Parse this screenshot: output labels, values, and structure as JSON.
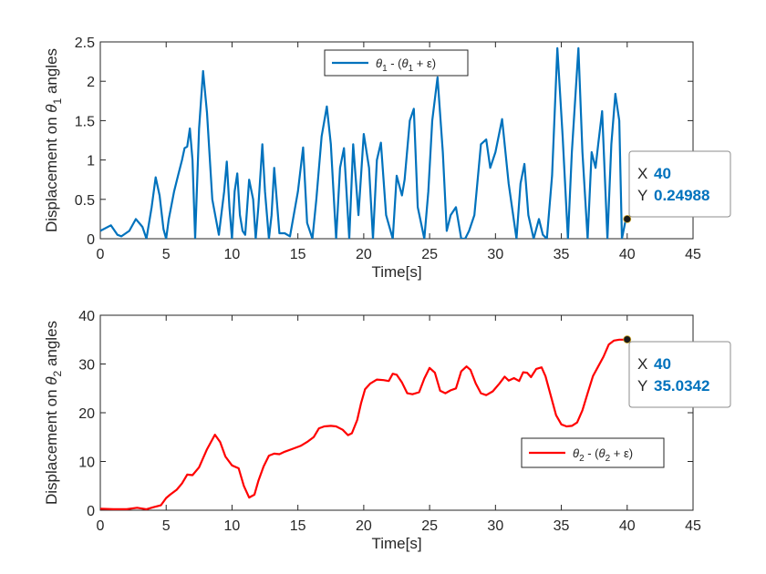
{
  "chart_data": [
    {
      "type": "line",
      "xlabel": "Time[s]",
      "ylabel": {
        "prefix": "Displacement on ",
        "symbol": "θ",
        "sub": "1",
        "suffix": " angles"
      },
      "xlim": [
        0,
        45
      ],
      "ylim": [
        0,
        2.5
      ],
      "xticks": [
        0,
        5,
        10,
        15,
        20,
        25,
        30,
        35,
        40,
        45
      ],
      "yticks": [
        0,
        0.5,
        1,
        1.5,
        2,
        2.5
      ],
      "xtick_labels": [
        "0",
        "5",
        "10",
        "15",
        "20",
        "25",
        "30",
        "35",
        "40",
        "45"
      ],
      "ytick_labels": [
        "0",
        "0.5",
        "1",
        "1.5",
        "2",
        "2.5"
      ],
      "grid": false,
      "legend": {
        "position": "top-center",
        "parts": [
          "θ",
          "1",
          " - (",
          "θ",
          "1",
          " + ε)"
        ]
      },
      "series": [
        {
          "color": "#0072BD",
          "x": [
            0,
            0.8,
            1.3,
            1.6,
            2.2,
            2.7,
            3.2,
            3.5,
            3.9,
            4.2,
            4.5,
            4.8,
            5.0,
            5.2,
            5.6,
            5.9,
            6.2,
            6.4,
            6.6,
            6.8,
            7.0,
            7.2,
            7.5,
            7.8,
            8.1,
            8.5,
            9.0,
            9.4,
            9.6,
            9.8,
            10.0,
            10.2,
            10.4,
            10.6,
            10.8,
            11.0,
            11.3,
            11.6,
            11.8,
            12.0,
            12.3,
            12.5,
            12.8,
            13.0,
            13.2,
            13.6,
            14.0,
            14.4,
            15.0,
            15.4,
            15.7,
            16.1,
            16.4,
            16.8,
            17.2,
            17.5,
            17.9,
            18.2,
            18.5,
            18.9,
            19.2,
            19.6,
            20.0,
            20.4,
            20.7,
            21.0,
            21.3,
            21.7,
            22.2,
            22.5,
            22.9,
            23.1,
            23.5,
            23.8,
            24.1,
            24.6,
            24.9,
            25.2,
            25.6,
            26.0,
            26.3,
            26.6,
            27.0,
            27.4,
            27.7,
            28.0,
            28.4,
            28.9,
            29.3,
            29.6,
            30.0,
            30.5,
            31.0,
            31.3,
            31.6,
            31.9,
            32.2,
            32.5,
            32.9,
            33.3,
            33.6,
            33.9,
            34.3,
            34.7,
            35.1,
            35.5,
            35.8,
            36.3,
            36.6,
            37.0,
            37.3,
            37.6,
            37.8,
            38.1,
            38.5,
            38.8,
            39.1,
            39.4,
            39.6,
            39.9,
            40.0
          ],
          "values": [
            0.1,
            0.17,
            0.05,
            0.03,
            0.1,
            0.25,
            0.15,
            0.0,
            0.4,
            0.78,
            0.55,
            0.12,
            0.0,
            0.25,
            0.6,
            0.8,
            1.0,
            1.15,
            1.17,
            1.4,
            1.0,
            0.0,
            1.4,
            2.13,
            1.6,
            0.5,
            0.05,
            0.6,
            0.98,
            0.4,
            0.0,
            0.6,
            0.83,
            0.3,
            0.1,
            0.05,
            0.75,
            0.5,
            0.0,
            0.4,
            1.2,
            0.6,
            0.0,
            0.3,
            0.9,
            0.07,
            0.07,
            0.03,
            0.6,
            1.16,
            0.2,
            0.0,
            0.5,
            1.3,
            1.68,
            1.2,
            0.0,
            0.9,
            1.15,
            0.0,
            1.2,
            0.3,
            1.33,
            0.9,
            0.0,
            1.0,
            1.22,
            0.3,
            0.0,
            0.8,
            0.55,
            0.75,
            1.5,
            1.65,
            0.4,
            0.0,
            0.6,
            1.5,
            2.05,
            1.1,
            0.1,
            0.3,
            0.4,
            0.0,
            0.0,
            0.1,
            0.3,
            1.2,
            1.26,
            0.9,
            1.1,
            1.52,
            0.7,
            0.35,
            0.0,
            0.7,
            0.95,
            0.3,
            0.0,
            0.25,
            0.05,
            0.0,
            0.8,
            2.42,
            1.3,
            0.0,
            1.1,
            2.42,
            1.1,
            0.0,
            1.1,
            0.9,
            1.2,
            1.62,
            0.0,
            1.2,
            1.84,
            1.5,
            0.0,
            0.25,
            0.25
          ]
        }
      ],
      "datatip": {
        "point": [
          40,
          0.24988
        ],
        "x_label": "X",
        "x_value": "40",
        "y_label": "Y",
        "y_value": "0.24988"
      }
    },
    {
      "type": "line",
      "xlabel": "Time[s]",
      "ylabel": {
        "prefix": "Displacement on ",
        "symbol": "θ",
        "sub": "2",
        "suffix": " angles"
      },
      "xlim": [
        0,
        45
      ],
      "ylim": [
        0,
        40
      ],
      "xticks": [
        0,
        5,
        10,
        15,
        20,
        25,
        30,
        35,
        40,
        45
      ],
      "yticks": [
        0,
        10,
        20,
        30,
        40
      ],
      "xtick_labels": [
        "0",
        "5",
        "10",
        "15",
        "20",
        "25",
        "30",
        "35",
        "40",
        "45"
      ],
      "ytick_labels": [
        "0",
        "10",
        "20",
        "30",
        "40"
      ],
      "grid": false,
      "legend": {
        "position": "bottom-right",
        "parts": [
          "θ",
          "2",
          " - (",
          "θ",
          "2",
          " + ε)"
        ]
      },
      "series": [
        {
          "color": "#FF0000",
          "x": [
            0,
            1.0,
            2.0,
            2.8,
            3.5,
            4.0,
            4.6,
            5.0,
            5.3,
            5.8,
            6.2,
            6.6,
            7.0,
            7.5,
            8.1,
            8.7,
            9.1,
            9.5,
            10.0,
            10.5,
            10.9,
            11.3,
            11.7,
            12.0,
            12.4,
            12.8,
            13.2,
            13.6,
            14.0,
            14.6,
            15.2,
            15.7,
            16.2,
            16.6,
            17.0,
            17.5,
            17.9,
            18.4,
            18.8,
            19.1,
            19.5,
            19.8,
            20.1,
            20.5,
            21.0,
            21.5,
            21.9,
            22.2,
            22.5,
            22.9,
            23.3,
            23.7,
            24.2,
            24.6,
            25.0,
            25.4,
            25.8,
            26.2,
            26.6,
            27.0,
            27.4,
            27.8,
            28.1,
            28.5,
            28.9,
            29.3,
            29.8,
            30.3,
            30.7,
            31.0,
            31.4,
            31.8,
            32.1,
            32.4,
            32.7,
            33.1,
            33.5,
            33.8,
            34.2,
            34.6,
            35.0,
            35.4,
            35.8,
            36.2,
            36.6,
            37.0,
            37.4,
            37.8,
            38.2,
            38.6,
            39.0,
            39.4,
            39.7,
            40.0
          ],
          "values": [
            0.3,
            0.2,
            0.2,
            0.5,
            0.2,
            0.6,
            1.0,
            2.5,
            3.2,
            4.2,
            5.5,
            7.3,
            7.2,
            8.8,
            12.5,
            15.5,
            14.0,
            11.0,
            9.2,
            8.6,
            5.0,
            2.6,
            3.2,
            6.0,
            9.0,
            11.2,
            11.6,
            11.5,
            12.0,
            12.6,
            13.2,
            14.0,
            15.0,
            16.8,
            17.2,
            17.3,
            17.2,
            16.5,
            15.4,
            15.8,
            18.5,
            22.0,
            24.8,
            26.0,
            26.8,
            26.7,
            26.5,
            28.0,
            27.8,
            26.2,
            24.0,
            23.8,
            24.2,
            27.0,
            29.2,
            28.2,
            24.5,
            24.0,
            24.6,
            25.0,
            28.5,
            29.5,
            28.8,
            26.0,
            24.0,
            23.6,
            24.4,
            26.0,
            27.4,
            26.6,
            27.1,
            26.5,
            28.3,
            28.2,
            27.3,
            29.0,
            29.3,
            27.5,
            23.5,
            19.5,
            17.6,
            17.2,
            17.3,
            18.0,
            20.5,
            24.0,
            27.5,
            29.5,
            31.5,
            34.0,
            34.8,
            35.0,
            35.0,
            35.0342
          ]
        }
      ],
      "datatip": {
        "point": [
          40,
          35.0342
        ],
        "x_label": "X",
        "x_value": "40",
        "y_label": "Y",
        "y_value": "35.0342"
      }
    }
  ],
  "colors": {
    "axis": "#262626",
    "datatip_value": "#0072BD",
    "datatip_border": "#8C8C8C"
  }
}
